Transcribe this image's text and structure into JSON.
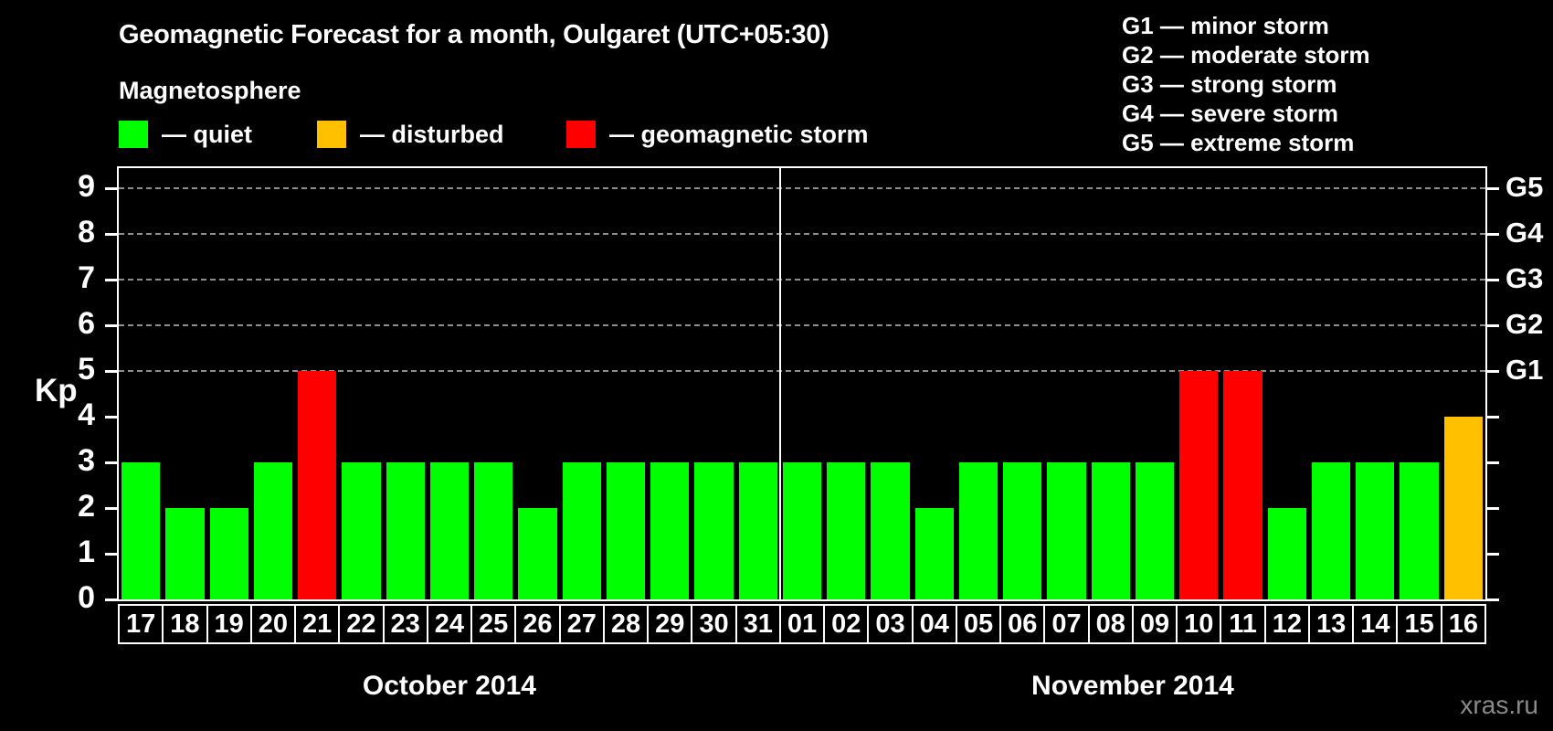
{
  "legend": {
    "heading": "Magnetosphere",
    "items": [
      {
        "status": "quiet",
        "label": "— quiet",
        "color": "#00FF00"
      },
      {
        "status": "disturbed",
        "label": "— disturbed",
        "color": "#FFC000"
      },
      {
        "status": "storm",
        "label": "— geomagnetic storm",
        "color": "#FF0000"
      }
    ]
  },
  "storm_scale_legend": [
    "G1 — minor storm",
    "G2 — moderate storm",
    "G3 — strong storm",
    "G4 — severe storm",
    "G5 — extreme storm"
  ],
  "watermark": "xras.ru",
  "chart_data": {
    "type": "bar",
    "title": "Geomagnetic Forecast for a month, Oulgaret (UTC+05:30)",
    "ylabel": "Kp",
    "ylim": [
      0,
      9.4
    ],
    "yticks": [
      "0",
      "1",
      "2",
      "3",
      "4",
      "5",
      "6",
      "7",
      "8",
      "9"
    ],
    "grid_on": true,
    "gridlines_at": [
      5,
      6,
      7,
      8,
      9
    ],
    "legend_position": "top",
    "g_scale": [
      {
        "kp": 5,
        "label": "G1"
      },
      {
        "kp": 6,
        "label": "G2"
      },
      {
        "kp": 7,
        "label": "G3"
      },
      {
        "kp": 8,
        "label": "G4"
      },
      {
        "kp": 9,
        "label": "G5"
      }
    ],
    "status_colors": {
      "quiet": "#00FF00",
      "disturbed": "#FFC000",
      "storm": "#FF0000"
    },
    "groups": [
      {
        "label": "October 2014",
        "days": [
          {
            "day": "17",
            "kp": 3,
            "status": "quiet"
          },
          {
            "day": "18",
            "kp": 2,
            "status": "quiet"
          },
          {
            "day": "19",
            "kp": 2,
            "status": "quiet"
          },
          {
            "day": "20",
            "kp": 3,
            "status": "quiet"
          },
          {
            "day": "21",
            "kp": 5,
            "status": "storm"
          },
          {
            "day": "22",
            "kp": 3,
            "status": "quiet"
          },
          {
            "day": "23",
            "kp": 3,
            "status": "quiet"
          },
          {
            "day": "24",
            "kp": 3,
            "status": "quiet"
          },
          {
            "day": "25",
            "kp": 3,
            "status": "quiet"
          },
          {
            "day": "26",
            "kp": 2,
            "status": "quiet"
          },
          {
            "day": "27",
            "kp": 3,
            "status": "quiet"
          },
          {
            "day": "28",
            "kp": 3,
            "status": "quiet"
          },
          {
            "day": "29",
            "kp": 3,
            "status": "quiet"
          },
          {
            "day": "30",
            "kp": 3,
            "status": "quiet"
          },
          {
            "day": "31",
            "kp": 3,
            "status": "quiet"
          }
        ]
      },
      {
        "label": "November 2014",
        "days": [
          {
            "day": "01",
            "kp": 3,
            "status": "quiet"
          },
          {
            "day": "02",
            "kp": 3,
            "status": "quiet"
          },
          {
            "day": "03",
            "kp": 3,
            "status": "quiet"
          },
          {
            "day": "04",
            "kp": 2,
            "status": "quiet"
          },
          {
            "day": "05",
            "kp": 3,
            "status": "quiet"
          },
          {
            "day": "06",
            "kp": 3,
            "status": "quiet"
          },
          {
            "day": "07",
            "kp": 3,
            "status": "quiet"
          },
          {
            "day": "08",
            "kp": 3,
            "status": "quiet"
          },
          {
            "day": "09",
            "kp": 3,
            "status": "quiet"
          },
          {
            "day": "10",
            "kp": 5,
            "status": "storm"
          },
          {
            "day": "11",
            "kp": 5,
            "status": "storm"
          },
          {
            "day": "12",
            "kp": 2,
            "status": "quiet"
          },
          {
            "day": "13",
            "kp": 3,
            "status": "quiet"
          },
          {
            "day": "14",
            "kp": 3,
            "status": "quiet"
          },
          {
            "day": "15",
            "kp": 3,
            "status": "quiet"
          },
          {
            "day": "16",
            "kp": 4,
            "status": "disturbed"
          }
        ]
      }
    ]
  }
}
